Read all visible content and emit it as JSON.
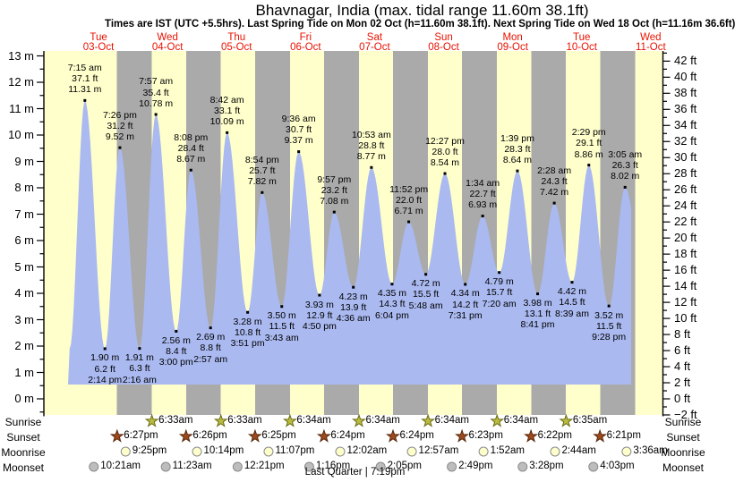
{
  "header": {
    "title": "Bhavnagar, India (max. tidal range 11.60m 38.1ft)",
    "subtitle": "Times are IST (UTC +5.5hrs). Last Spring Tide on Mon 02 Oct (h=11.60m 38.1ft). Next Spring Tide on Wed 18 Oct (h=11.16m 36.6ft)"
  },
  "chart_data": {
    "type": "area",
    "title": "Bhavnagar, India (max. tidal range 11.60m 38.1ft)",
    "ylabel_left_unit": "m",
    "ylabel_right_unit": "ft",
    "y_axis_left": {
      "min": 0,
      "max": 13,
      "label_step": 1,
      "minor_step": 0.5
    },
    "y_axis_right": {
      "min": -2,
      "max": 42,
      "label_step": 2,
      "minor_step": 1
    },
    "grid": false,
    "colors": {
      "daylight_band": "#ffffcc",
      "night_band": "#aaaaaa",
      "tide_fill": "#aab9f0",
      "day_label_red": "#e81100",
      "sunrise_star": "#b9bd3e",
      "sunrise_star_edge": "#6b6b14",
      "sunset_star": "#9e4a1f",
      "sunset_star_edge": "#58280a",
      "moonrise_dot": "#ffffcc",
      "moonset_dot": "#bdbdbd",
      "moon_dot_edge": "#8a8a8a"
    },
    "days": [
      {
        "name": "Tue",
        "date": "03-Oct"
      },
      {
        "name": "Wed",
        "date": "04-Oct"
      },
      {
        "name": "Thu",
        "date": "05-Oct"
      },
      {
        "name": "Fri",
        "date": "06-Oct"
      },
      {
        "name": "Sat",
        "date": "07-Oct"
      },
      {
        "name": "Sun",
        "date": "08-Oct"
      },
      {
        "name": "Mon",
        "date": "09-Oct"
      },
      {
        "name": "Tue",
        "date": "10-Oct"
      },
      {
        "name": "Wed",
        "date": "11-Oct"
      }
    ],
    "tide_events": [
      {
        "type": "high",
        "day_index": 0,
        "time": "7:15 am",
        "height_ft": "37.1 ft",
        "height_m": "11.31 m"
      },
      {
        "type": "low",
        "day_index": 0,
        "time": "2:14 pm",
        "height_ft": "6.2 ft",
        "height_m": "1.90 m"
      },
      {
        "type": "high",
        "day_index": 0,
        "time": "7:26 pm",
        "height_ft": "31.2 ft",
        "height_m": "9.52 m"
      },
      {
        "type": "low",
        "day_index": 1,
        "time": "2:16 am",
        "height_ft": "6.3 ft",
        "height_m": "1.91 m"
      },
      {
        "type": "high",
        "day_index": 1,
        "time": "7:57 am",
        "height_ft": "35.4 ft",
        "height_m": "10.78 m"
      },
      {
        "type": "low",
        "day_index": 1,
        "time": "3:00 pm",
        "height_ft": "8.4 ft",
        "height_m": "2.56 m"
      },
      {
        "type": "high",
        "day_index": 1,
        "time": "8:08 pm",
        "height_ft": "28.4 ft",
        "height_m": "8.67 m"
      },
      {
        "type": "low",
        "day_index": 2,
        "time": "2:57 am",
        "height_ft": "8.8 ft",
        "height_m": "2.69 m"
      },
      {
        "type": "high",
        "day_index": 2,
        "time": "8:42 am",
        "height_ft": "33.1 ft",
        "height_m": "10.09 m"
      },
      {
        "type": "low",
        "day_index": 2,
        "time": "3:51 pm",
        "height_ft": "10.8 ft",
        "height_m": "3.28 m"
      },
      {
        "type": "high",
        "day_index": 2,
        "time": "8:54 pm",
        "height_ft": "25.7 ft",
        "height_m": "7.82 m"
      },
      {
        "type": "low",
        "day_index": 3,
        "time": "3:43 am",
        "height_ft": "11.5 ft",
        "height_m": "3.50 m"
      },
      {
        "type": "high",
        "day_index": 3,
        "time": "9:36 am",
        "height_ft": "30.7 ft",
        "height_m": "9.37 m"
      },
      {
        "type": "low",
        "day_index": 3,
        "time": "4:50 pm",
        "height_ft": "12.9 ft",
        "height_m": "3.93 m"
      },
      {
        "type": "high",
        "day_index": 3,
        "time": "9:57 pm",
        "height_ft": "23.2 ft",
        "height_m": "7.08 m"
      },
      {
        "type": "low",
        "day_index": 4,
        "time": "4:36 am",
        "height_ft": "13.9 ft",
        "height_m": "4.23 m"
      },
      {
        "type": "high",
        "day_index": 4,
        "time": "10:53 am",
        "height_ft": "28.8 ft",
        "height_m": "8.77 m"
      },
      {
        "type": "low",
        "day_index": 4,
        "time": "6:04 pm",
        "height_ft": "14.3 ft",
        "height_m": "4.35 m"
      },
      {
        "type": "high",
        "day_index": 4,
        "time": "11:52 pm",
        "height_ft": "22.0 ft",
        "height_m": "6.71 m"
      },
      {
        "type": "low",
        "day_index": 5,
        "time": "5:48 am",
        "height_ft": "15.5 ft",
        "height_m": "4.72 m"
      },
      {
        "type": "high",
        "day_index": 5,
        "time": "12:27 pm",
        "height_ft": "28.0 ft",
        "height_m": "8.54 m"
      },
      {
        "type": "low",
        "day_index": 5,
        "time": "7:31 pm",
        "height_ft": "14.2 ft",
        "height_m": "4.34 m"
      },
      {
        "type": "high",
        "day_index": 6,
        "time": "1:34 am",
        "height_ft": "22.7 ft",
        "height_m": "6.93 m"
      },
      {
        "type": "low",
        "day_index": 6,
        "time": "7:20 am",
        "height_ft": "15.7 ft",
        "height_m": "4.79 m"
      },
      {
        "type": "high",
        "day_index": 6,
        "time": "1:39 pm",
        "height_ft": "28.3 ft",
        "height_m": "8.64 m"
      },
      {
        "type": "low",
        "day_index": 6,
        "time": "8:41 pm",
        "height_ft": "13.1 ft",
        "height_m": "3.98 m"
      },
      {
        "type": "high",
        "day_index": 7,
        "time": "2:28 am",
        "height_ft": "24.3 ft",
        "height_m": "7.42 m"
      },
      {
        "type": "low",
        "day_index": 7,
        "time": "8:39 am",
        "height_ft": "14.5 ft",
        "height_m": "4.42 m"
      },
      {
        "type": "high",
        "day_index": 7,
        "time": "2:29 pm",
        "height_ft": "29.1 ft",
        "height_m": "8.86 m"
      },
      {
        "type": "low",
        "day_index": 7,
        "time": "9:28 pm",
        "height_ft": "11.5 ft",
        "height_m": "3.52 m"
      },
      {
        "type": "high",
        "day_index": 8,
        "time": "3:05 am",
        "height_ft": "26.3 ft",
        "height_m": "8.02 m"
      }
    ],
    "sun_moon": {
      "sunrise": {
        "label": "Sunrise",
        "events": [
          {
            "day_index": 1,
            "time": "6:33am"
          },
          {
            "day_index": 2,
            "time": "6:33am"
          },
          {
            "day_index": 3,
            "time": "6:34am"
          },
          {
            "day_index": 4,
            "time": "6:34am"
          },
          {
            "day_index": 5,
            "time": "6:34am"
          },
          {
            "day_index": 6,
            "time": "6:34am"
          },
          {
            "day_index": 7,
            "time": "6:35am"
          }
        ]
      },
      "sunset": {
        "label": "Sunset",
        "events": [
          {
            "day_index": 0,
            "time": "6:27pm"
          },
          {
            "day_index": 1,
            "time": "6:26pm"
          },
          {
            "day_index": 2,
            "time": "6:25pm"
          },
          {
            "day_index": 3,
            "time": "6:24pm"
          },
          {
            "day_index": 4,
            "time": "6:24pm"
          },
          {
            "day_index": 5,
            "time": "6:23pm"
          },
          {
            "day_index": 6,
            "time": "6:22pm"
          },
          {
            "day_index": 7,
            "time": "6:21pm"
          }
        ]
      },
      "moonrise": {
        "label": "Moonrise",
        "events": [
          {
            "day_index": 0,
            "time": "9:25pm"
          },
          {
            "day_index": 1,
            "time": "10:14pm"
          },
          {
            "day_index": 2,
            "time": "11:07pm"
          },
          {
            "day_index": 4,
            "time": "12:02am"
          },
          {
            "day_index": 5,
            "time": "12:57am"
          },
          {
            "day_index": 6,
            "time": "1:52am"
          },
          {
            "day_index": 7,
            "time": "2:44am"
          },
          {
            "day_index": 8,
            "time": "3:36am"
          }
        ]
      },
      "moonset": {
        "label": "Moonset",
        "events": [
          {
            "day_index": 0,
            "time": "10:21am"
          },
          {
            "day_index": 1,
            "time": "11:23am"
          },
          {
            "day_index": 2,
            "time": "12:21pm"
          },
          {
            "day_index": 3,
            "time": "1:16pm"
          },
          {
            "day_index": 4,
            "time": "2:05pm"
          },
          {
            "day_index": 5,
            "time": "2:49pm"
          },
          {
            "day_index": 6,
            "time": "3:28pm"
          },
          {
            "day_index": 7,
            "time": "4:03pm"
          }
        ]
      }
    },
    "moon_phase": "Last Quarter | 7:19pm"
  }
}
